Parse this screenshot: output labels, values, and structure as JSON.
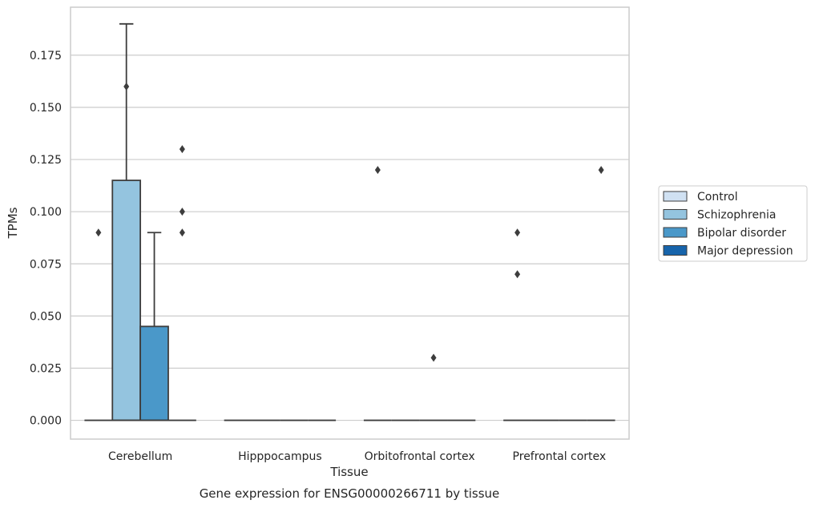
{
  "chart_data": {
    "type": "box",
    "xlabel": "Tissue",
    "ylabel": "TPMs",
    "caption": "Gene expression for ENSG00000266711 by tissue",
    "ylim": [
      -0.009,
      0.198
    ],
    "y_ticks": [
      "0.000",
      "0.025",
      "0.050",
      "0.075",
      "0.100",
      "0.125",
      "0.150",
      "0.175"
    ],
    "y_tick_values": [
      0,
      0.025,
      0.05,
      0.075,
      0.1,
      0.125,
      0.15,
      0.175
    ],
    "grid": true,
    "legend_position": "right",
    "categories": [
      "Cerebellum",
      "Hipppocampus",
      "Orbitofrontal cortex",
      "Prefrontal cortex"
    ],
    "series": [
      {
        "name": "Control",
        "color": "#d0e1f2",
        "boxes": [
          {
            "q1": 0,
            "median": 0,
            "q3": 0,
            "whisker_low": 0,
            "whisker_high": 0,
            "outliers": [
              0.09
            ]
          },
          {
            "q1": 0,
            "median": 0,
            "q3": 0,
            "whisker_low": 0,
            "whisker_high": 0,
            "outliers": []
          },
          {
            "q1": 0,
            "median": 0,
            "q3": 0,
            "whisker_low": 0,
            "whisker_high": 0,
            "outliers": [
              0.12
            ]
          },
          {
            "q1": 0,
            "median": 0,
            "q3": 0,
            "whisker_low": 0,
            "whisker_high": 0,
            "outliers": [
              0.09,
              0.07
            ]
          }
        ]
      },
      {
        "name": "Schizophrenia",
        "color": "#94c4df",
        "boxes": [
          {
            "q1": 0,
            "median": 0,
            "q3": 0.115,
            "whisker_low": 0,
            "whisker_high": 0.19,
            "outliers": [
              0.16
            ]
          },
          {
            "q1": 0,
            "median": 0,
            "q3": 0,
            "whisker_low": 0,
            "whisker_high": 0,
            "outliers": []
          },
          {
            "q1": 0,
            "median": 0,
            "q3": 0,
            "whisker_low": 0,
            "whisker_high": 0,
            "outliers": []
          },
          {
            "q1": 0,
            "median": 0,
            "q3": 0,
            "whisker_low": 0,
            "whisker_high": 0,
            "outliers": []
          }
        ]
      },
      {
        "name": "Bipolar disorder",
        "color": "#4a98c9",
        "boxes": [
          {
            "q1": 0,
            "median": 0,
            "q3": 0.045,
            "whisker_low": 0,
            "whisker_high": 0.09,
            "outliers": []
          },
          {
            "q1": 0,
            "median": 0,
            "q3": 0,
            "whisker_low": 0,
            "whisker_high": 0,
            "outliers": []
          },
          {
            "q1": 0,
            "median": 0,
            "q3": 0,
            "whisker_low": 0,
            "whisker_high": 0,
            "outliers": [
              0.03
            ]
          },
          {
            "q1": 0,
            "median": 0,
            "q3": 0,
            "whisker_low": 0,
            "whisker_high": 0,
            "outliers": []
          }
        ]
      },
      {
        "name": "Major depression",
        "color": "#1764ab",
        "boxes": [
          {
            "q1": 0,
            "median": 0,
            "q3": 0,
            "whisker_low": 0,
            "whisker_high": 0,
            "outliers": [
              0.13,
              0.1,
              0.09
            ]
          },
          {
            "q1": 0,
            "median": 0,
            "q3": 0,
            "whisker_low": 0,
            "whisker_high": 0,
            "outliers": []
          },
          {
            "q1": 0,
            "median": 0,
            "q3": 0,
            "whisker_low": 0,
            "whisker_high": 0,
            "outliers": []
          },
          {
            "q1": 0,
            "median": 0,
            "q3": 0,
            "whisker_low": 0,
            "whisker_high": 0,
            "outliers": [
              0.12
            ]
          }
        ]
      }
    ]
  }
}
